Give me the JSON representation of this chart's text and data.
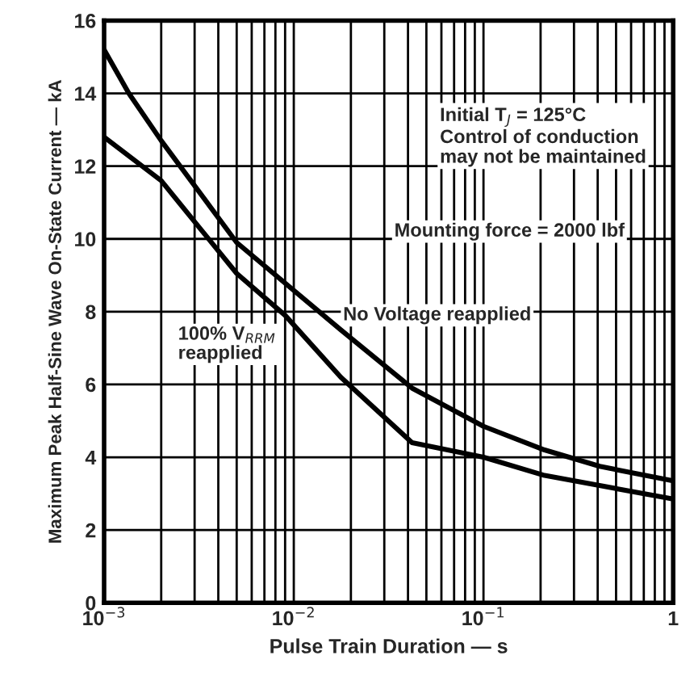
{
  "chart_data": {
    "type": "line",
    "xlabel": "Pulse Train Duration — s",
    "ylabel": "Maximum Peak Half-Sine Wave On-State Current — kA",
    "log": "x",
    "xlim": [
      0.001,
      1
    ],
    "ylim": [
      0,
      16
    ],
    "xticks": [
      {
        "value": 0.001,
        "label": "10$^{−3}$"
      },
      {
        "value": 0.01,
        "label": "10$^{−2}$"
      },
      {
        "value": 0.1,
        "label": "10$^{−1}$"
      },
      1
    ],
    "yticks": [
      0,
      2,
      4,
      6,
      8,
      10,
      12,
      14,
      16
    ],
    "grid": true,
    "series": [
      {
        "name": "No Voltage reapplied",
        "color": "#000000",
        "x": [
          0.001,
          0.00135,
          0.002,
          0.005,
          0.0177,
          0.042,
          0.1,
          0.21,
          0.41,
          1
        ],
        "values": [
          15.2,
          14.0,
          12.7,
          9.9,
          7.5,
          5.9,
          4.85,
          4.2,
          3.75,
          3.35
        ]
      },
      {
        "name": "100% V$_{RRM}$\nreapplied",
        "color": "#000000",
        "x": [
          0.001,
          0.002,
          0.005,
          0.009,
          0.0177,
          0.042,
          0.1,
          0.21,
          1
        ],
        "values": [
          12.8,
          11.6,
          9.05,
          7.9,
          6.2,
          4.4,
          4.0,
          3.5,
          2.85
        ]
      }
    ],
    "annotations": [
      "Initial T$_{J}$ = 125°C\nControl of conduction\nmay not be maintained",
      "Mounting force = 2000 lbf"
    ]
  }
}
